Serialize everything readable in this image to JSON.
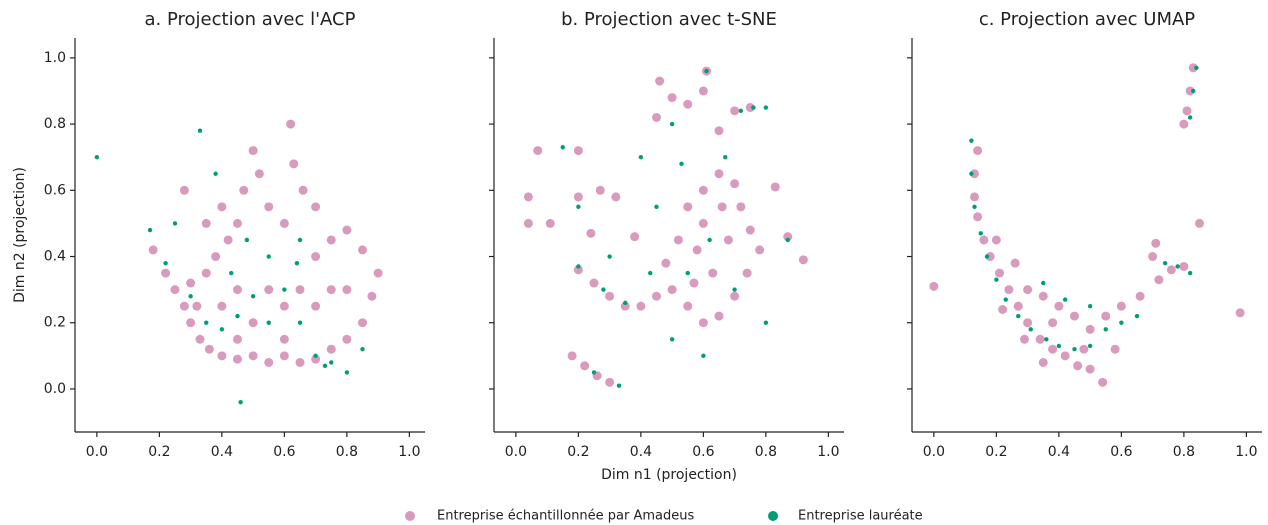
{
  "chart_data": [
    {
      "type": "scatter",
      "title": "a. Projection avec l'ACP",
      "ylabel": "Dim n2 (projection)",
      "xlim": [
        -0.07,
        1.05
      ],
      "ylim": [
        -0.13,
        1.06
      ],
      "xticks": [
        {
          "value": 0,
          "label": "0.0"
        },
        0.2,
        0.4,
        0.6,
        0.8,
        {
          "value": 1,
          "label": "1.0"
        }
      ],
      "yticks": [
        {
          "value": 0,
          "label": "0.0"
        },
        0.2,
        0.4,
        0.6,
        0.8,
        {
          "value": 1,
          "label": "1.0"
        }
      ],
      "series": [
        {
          "name": "Entreprise échantillonnée par Amadeus",
          "color": "#cc79a7",
          "x": [
            0.18,
            0.22,
            0.25,
            0.28,
            0.3,
            0.33,
            0.36,
            0.4,
            0.45,
            0.5,
            0.55,
            0.6,
            0.65,
            0.7,
            0.75,
            0.8,
            0.85,
            0.88,
            0.9,
            0.85,
            0.8,
            0.75,
            0.7,
            0.66,
            0.63,
            0.6,
            0.55,
            0.52,
            0.5,
            0.47,
            0.45,
            0.42,
            0.4,
            0.38,
            0.35,
            0.3,
            0.32,
            0.4,
            0.45,
            0.5,
            0.55,
            0.6,
            0.65,
            0.7,
            0.75,
            0.8,
            0.45,
            0.6,
            0.7,
            0.35,
            0.62,
            0.28
          ],
          "values": [
            0.42,
            0.35,
            0.3,
            0.25,
            0.2,
            0.15,
            0.12,
            0.1,
            0.09,
            0.1,
            0.08,
            0.1,
            0.08,
            0.09,
            0.12,
            0.15,
            0.2,
            0.28,
            0.35,
            0.42,
            0.48,
            0.45,
            0.55,
            0.6,
            0.68,
            0.5,
            0.55,
            0.65,
            0.72,
            0.6,
            0.5,
            0.45,
            0.55,
            0.4,
            0.35,
            0.32,
            0.25,
            0.25,
            0.3,
            0.2,
            0.3,
            0.25,
            0.3,
            0.25,
            0.3,
            0.3,
            0.15,
            0.15,
            0.4,
            0.5,
            0.8,
            0.6
          ]
        },
        {
          "name": "Entreprise lauréate",
          "color": "#009e73",
          "x": [
            0.17,
            0.22,
            0.3,
            0.35,
            0.4,
            0.45,
            0.5,
            0.55,
            0.6,
            0.64,
            0.65,
            0.7,
            0.73,
            0.75,
            0.8,
            0.85,
            0.48,
            0.43,
            0.33,
            0.38,
            0.65,
            0.46,
            0.0,
            0.25,
            0.55
          ],
          "values": [
            0.48,
            0.38,
            0.28,
            0.2,
            0.18,
            0.22,
            0.28,
            0.2,
            0.3,
            0.38,
            0.45,
            0.1,
            0.07,
            0.08,
            0.05,
            0.12,
            0.45,
            0.35,
            0.78,
            0.65,
            0.2,
            -0.04,
            0.7,
            0.5,
            0.4
          ]
        }
      ]
    },
    {
      "type": "scatter",
      "title": "b. Projection avec t-SNE",
      "xlabel": "Dim n1 (projection)",
      "sharey": true,
      "xlim": [
        -0.07,
        1.05
      ],
      "ylim": [
        -0.13,
        1.06
      ],
      "xticks": [
        {
          "value": 0,
          "label": "0.0"
        },
        0.2,
        0.4,
        0.6,
        0.8,
        {
          "value": 1,
          "label": "1.0"
        }
      ],
      "yticks": [
        0,
        0.2,
        0.4,
        0.6,
        0.8,
        1
      ],
      "series": [
        {
          "color": "#cc79a7",
          "x": [
            0.55,
            0.6,
            0.65,
            0.7,
            0.72,
            0.75,
            0.78,
            0.74,
            0.7,
            0.65,
            0.6,
            0.55,
            0.5,
            0.48,
            0.52,
            0.58,
            0.63,
            0.68,
            0.6,
            0.66,
            0.57,
            0.45,
            0.4,
            0.35,
            0.3,
            0.25,
            0.2,
            0.18,
            0.22,
            0.26,
            0.3,
            0.2,
            0.27,
            0.32,
            0.24,
            0.38,
            0.46,
            0.5,
            0.55,
            0.6,
            0.45,
            0.65,
            0.7,
            0.75,
            0.07,
            0.2,
            0.04,
            0.04,
            0.11,
            0.87,
            0.92,
            0.83,
            0.61
          ],
          "values": [
            0.55,
            0.6,
            0.65,
            0.62,
            0.55,
            0.48,
            0.42,
            0.35,
            0.28,
            0.22,
            0.2,
            0.25,
            0.3,
            0.38,
            0.45,
            0.42,
            0.35,
            0.45,
            0.5,
            0.55,
            0.32,
            0.28,
            0.25,
            0.25,
            0.28,
            0.32,
            0.36,
            0.1,
            0.07,
            0.04,
            0.02,
            0.58,
            0.6,
            0.58,
            0.47,
            0.46,
            0.93,
            0.88,
            0.86,
            0.9,
            0.82,
            0.78,
            0.84,
            0.85,
            0.72,
            0.72,
            0.58,
            0.5,
            0.5,
            0.46,
            0.39,
            0.61,
            0.96
          ]
        },
        {
          "color": "#009e73",
          "x": [
            0.2,
            0.28,
            0.35,
            0.25,
            0.33,
            0.55,
            0.62,
            0.7,
            0.72,
            0.76,
            0.61,
            0.5,
            0.4,
            0.45,
            0.3,
            0.67,
            0.5,
            0.87,
            0.15,
            0.2,
            0.8,
            0.6,
            0.43,
            0.8,
            0.53
          ],
          "values": [
            0.37,
            0.3,
            0.26,
            0.05,
            0.01,
            0.35,
            0.45,
            0.3,
            0.84,
            0.85,
            0.96,
            0.8,
            0.7,
            0.55,
            0.4,
            0.7,
            0.15,
            0.45,
            0.73,
            0.55,
            0.2,
            0.1,
            0.35,
            0.85,
            0.68
          ]
        }
      ]
    },
    {
      "type": "scatter",
      "title": "c. Projection avec UMAP",
      "sharey": true,
      "xlim": [
        -0.07,
        1.05
      ],
      "ylim": [
        -0.13,
        1.06
      ],
      "xticks": [
        {
          "value": 0,
          "label": "0.0"
        },
        0.2,
        0.4,
        0.6,
        0.8,
        {
          "value": 1,
          "label": "1.0"
        }
      ],
      "yticks": [
        0,
        0.2,
        0.4,
        0.6,
        0.8,
        1
      ],
      "series": [
        {
          "color": "#cc79a7",
          "x": [
            0.14,
            0.13,
            0.13,
            0.14,
            0.16,
            0.18,
            0.21,
            0.24,
            0.27,
            0.3,
            0.34,
            0.38,
            0.42,
            0.46,
            0.5,
            0.54,
            0.48,
            0.5,
            0.45,
            0.4,
            0.35,
            0.3,
            0.38,
            0.55,
            0.6,
            0.66,
            0.72,
            0.76,
            0.8,
            0.7,
            0.71,
            0.82,
            0.83,
            0.81,
            0.8,
            0.85,
            0.98,
            0.0,
            0.2,
            0.26,
            0.22,
            0.29,
            0.35,
            0.58
          ],
          "values": [
            0.72,
            0.65,
            0.58,
            0.52,
            0.45,
            0.4,
            0.35,
            0.3,
            0.25,
            0.2,
            0.15,
            0.12,
            0.1,
            0.07,
            0.06,
            0.02,
            0.12,
            0.18,
            0.22,
            0.25,
            0.28,
            0.3,
            0.2,
            0.22,
            0.25,
            0.28,
            0.33,
            0.36,
            0.37,
            0.4,
            0.44,
            0.9,
            0.97,
            0.84,
            0.8,
            0.5,
            0.23,
            0.31,
            0.45,
            0.38,
            0.24,
            0.15,
            0.08,
            0.12
          ]
        },
        {
          "color": "#009e73",
          "x": [
            0.12,
            0.12,
            0.13,
            0.15,
            0.17,
            0.2,
            0.23,
            0.27,
            0.31,
            0.36,
            0.4,
            0.45,
            0.5,
            0.6,
            0.65,
            0.78,
            0.82,
            0.83,
            0.84,
            0.82,
            0.5,
            0.35,
            0.42,
            0.74,
            0.55
          ],
          "values": [
            0.75,
            0.65,
            0.55,
            0.47,
            0.4,
            0.33,
            0.27,
            0.22,
            0.18,
            0.15,
            0.13,
            0.12,
            0.13,
            0.2,
            0.22,
            0.37,
            0.35,
            0.9,
            0.97,
            0.82,
            0.25,
            0.32,
            0.27,
            0.38,
            0.18
          ]
        }
      ]
    }
  ]
}
